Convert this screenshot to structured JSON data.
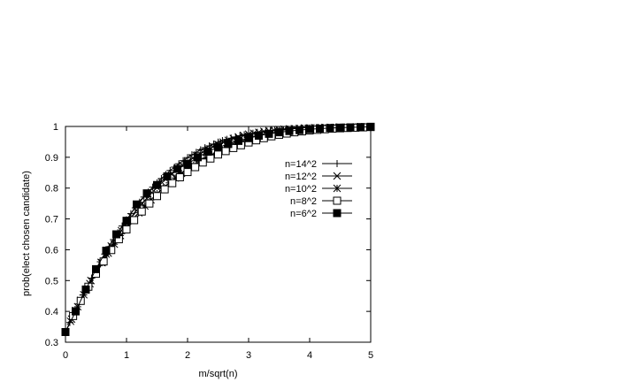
{
  "chart_data": {
    "type": "line",
    "title": "",
    "xlabel": "m/sqrt(n)",
    "ylabel": "prob(elect chosen candidate)",
    "xlim": [
      0,
      5
    ],
    "ylim": [
      0.3,
      1
    ],
    "xticks": [
      "0",
      "1",
      "2",
      "3",
      "4",
      "5"
    ],
    "yticks": [
      "0.3",
      "0.4",
      "0.5",
      "0.6",
      "0.7",
      "0.8",
      "0.9",
      "1"
    ],
    "grid": false,
    "legend_position": "right",
    "series": [
      {
        "name": "n=14^2",
        "marker": "plus",
        "x": [
          0,
          0.0714,
          0.1429,
          0.2143,
          0.2857,
          0.3571,
          0.4286,
          0.5,
          0.5714,
          0.6429,
          0.7143,
          0.7857,
          0.8571,
          0.9286,
          1,
          1.0714,
          1.1429,
          1.2143,
          1.2857,
          1.3571,
          1.4286,
          1.5,
          1.5714,
          1.6429,
          1.7143,
          1.7857,
          1.8571,
          1.9286,
          2,
          2.0714,
          2.1429,
          2.2143,
          2.2857,
          2.3571,
          2.4286,
          2.5,
          2.5714,
          2.6429,
          2.7143,
          2.7857,
          2.8571,
          2.9286,
          3,
          3.0714,
          3.1429,
          3.2143,
          3.2857,
          3.3571,
          3.4286,
          3.5,
          3.5714,
          3.6429,
          3.7143,
          3.7857,
          3.8571,
          3.9286,
          4,
          4.0714,
          4.1429,
          4.2143,
          4.2857,
          4.3571,
          4.4286,
          4.5,
          4.5714,
          4.6429,
          4.7143,
          4.7857,
          4.8571,
          4.9286,
          5
        ],
        "y": [
          0.333,
          0.364,
          0.394,
          0.424,
          0.453,
          0.481,
          0.508,
          0.535,
          0.561,
          0.586,
          0.61,
          0.633,
          0.655,
          0.677,
          0.697,
          0.717,
          0.736,
          0.754,
          0.771,
          0.787,
          0.803,
          0.817,
          0.831,
          0.844,
          0.857,
          0.868,
          0.879,
          0.889,
          0.899,
          0.908,
          0.916,
          0.924,
          0.931,
          0.937,
          0.943,
          0.949,
          0.954,
          0.958,
          0.962,
          0.966,
          0.97,
          0.973,
          0.976,
          0.978,
          0.981,
          0.983,
          0.985,
          0.986,
          0.988,
          0.989,
          0.99,
          0.991,
          0.992,
          0.993,
          0.994,
          0.995,
          0.995,
          0.996,
          0.996,
          0.997,
          0.997,
          0.997,
          0.998,
          0.998,
          0.998,
          0.998,
          0.999,
          0.999,
          0.999,
          0.999,
          0.999
        ]
      },
      {
        "name": "n=12^2",
        "marker": "cross",
        "x": [
          0,
          0.0833,
          0.1667,
          0.25,
          0.3333,
          0.4167,
          0.5,
          0.5833,
          0.6667,
          0.75,
          0.8333,
          0.9167,
          1,
          1.0833,
          1.1667,
          1.25,
          1.3333,
          1.4167,
          1.5,
          1.5833,
          1.6667,
          1.75,
          1.8333,
          1.9167,
          2,
          2.0833,
          2.1667,
          2.25,
          2.3333,
          2.4167,
          2.5,
          2.5833,
          2.6667,
          2.75,
          2.8333,
          2.9167,
          3,
          3.0833,
          3.1667,
          3.25,
          3.3333,
          3.4167,
          3.5,
          3.5833,
          3.6667,
          3.75,
          3.8333,
          3.9167,
          4,
          4.0833,
          4.1667,
          4.25,
          4.3333,
          4.4167,
          4.5,
          4.5833,
          4.6667,
          4.75,
          4.8333,
          4.9167,
          5
        ],
        "y": [
          0.333,
          0.368,
          0.403,
          0.436,
          0.469,
          0.5,
          0.53,
          0.559,
          0.586,
          0.612,
          0.638,
          0.662,
          0.685,
          0.707,
          0.728,
          0.748,
          0.767,
          0.785,
          0.802,
          0.818,
          0.833,
          0.847,
          0.861,
          0.874,
          0.886,
          0.897,
          0.907,
          0.917,
          0.926,
          0.934,
          0.942,
          0.949,
          0.955,
          0.961,
          0.966,
          0.971,
          0.975,
          0.978,
          0.981,
          0.984,
          0.986,
          0.988,
          0.99,
          0.991,
          0.992,
          0.993,
          0.994,
          0.995,
          0.995,
          0.996,
          0.996,
          0.997,
          0.997,
          0.997,
          0.998,
          0.998,
          0.998,
          0.998,
          0.999,
          0.999,
          0.999
        ]
      },
      {
        "name": "n=10^2",
        "marker": "star",
        "x": [
          0,
          0.1,
          0.2,
          0.3,
          0.4,
          0.5,
          0.6,
          0.7,
          0.8,
          0.9,
          1,
          1.1,
          1.2,
          1.3,
          1.4,
          1.5,
          1.6,
          1.7,
          1.8,
          1.9,
          2,
          2.1,
          2.2,
          2.3,
          2.4,
          2.5,
          2.6,
          2.7,
          2.8,
          2.9,
          3,
          3.1,
          3.2,
          3.3,
          3.4,
          3.5,
          3.6,
          3.7,
          3.8,
          3.9,
          4,
          4.1,
          4.2,
          4.3,
          4.4,
          4.5,
          4.6,
          4.7,
          4.8,
          4.9,
          5
        ],
        "y": [
          0.333,
          0.375,
          0.415,
          0.454,
          0.49,
          0.525,
          0.558,
          0.589,
          0.618,
          0.646,
          0.672,
          0.697,
          0.72,
          0.742,
          0.762,
          0.782,
          0.8,
          0.817,
          0.833,
          0.848,
          0.862,
          0.875,
          0.887,
          0.898,
          0.908,
          0.918,
          0.927,
          0.935,
          0.943,
          0.95,
          0.956,
          0.962,
          0.967,
          0.972,
          0.976,
          0.98,
          0.983,
          0.986,
          0.988,
          0.99,
          0.992,
          0.993,
          0.994,
          0.995,
          0.996,
          0.997,
          0.997,
          0.998,
          0.998,
          0.999,
          0.999
        ]
      },
      {
        "name": "n=8^2",
        "marker": "open-square",
        "x": [
          0,
          0.125,
          0.25,
          0.375,
          0.5,
          0.625,
          0.75,
          0.875,
          1,
          1.125,
          1.25,
          1.375,
          1.5,
          1.625,
          1.75,
          1.875,
          2,
          2.125,
          2.25,
          2.375,
          2.5,
          2.625,
          2.75,
          2.875,
          3,
          3.125,
          3.25,
          3.375,
          3.5,
          3.625,
          3.75,
          3.875,
          4,
          4.125,
          4.25,
          4.375,
          4.5,
          4.625,
          4.75,
          4.875,
          5
        ],
        "y": [
          0.333,
          0.385,
          0.434,
          0.48,
          0.522,
          0.562,
          0.599,
          0.634,
          0.666,
          0.696,
          0.724,
          0.75,
          0.774,
          0.796,
          0.816,
          0.835,
          0.852,
          0.868,
          0.883,
          0.896,
          0.909,
          0.92,
          0.93,
          0.939,
          0.948,
          0.955,
          0.962,
          0.968,
          0.973,
          0.977,
          0.981,
          0.984,
          0.987,
          0.989,
          0.991,
          0.993,
          0.994,
          0.995,
          0.996,
          0.997,
          0.998
        ]
      },
      {
        "name": "n=6^2",
        "marker": "filled-square",
        "x": [
          0,
          0.1667,
          0.3333,
          0.5,
          0.6667,
          0.8333,
          1,
          1.1667,
          1.3333,
          1.5,
          1.6667,
          1.8333,
          2,
          2.1667,
          2.3333,
          2.5,
          2.6667,
          2.8333,
          3,
          3.1667,
          3.3333,
          3.5,
          3.6667,
          3.8333,
          4,
          4.1667,
          4.3333,
          4.5,
          4.6667,
          4.8333,
          5
        ],
        "y": [
          0.333,
          0.4,
          0.471,
          0.537,
          0.597,
          0.65,
          0.694,
          0.747,
          0.783,
          0.81,
          0.838,
          0.862,
          0.878,
          0.9,
          0.918,
          0.932,
          0.943,
          0.953,
          0.962,
          0.97,
          0.976,
          0.981,
          0.985,
          0.988,
          0.991,
          0.993,
          0.995,
          0.996,
          0.997,
          0.998,
          0.999
        ]
      }
    ]
  }
}
